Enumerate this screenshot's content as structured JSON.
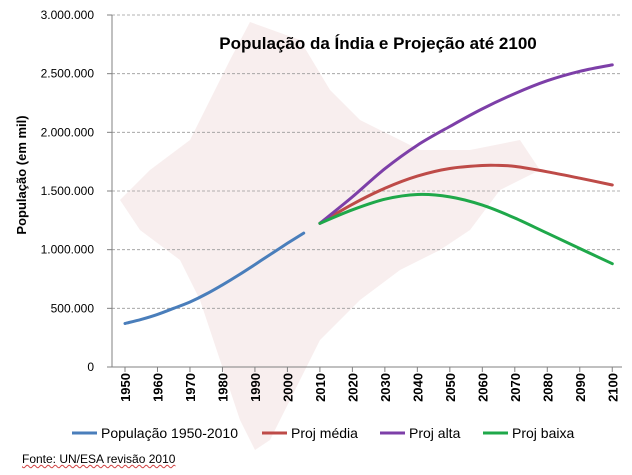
{
  "chart_data": {
    "type": "line",
    "title": "População da Índia e Projeção até 2100",
    "ylabel": "População (em mil)",
    "xlabel": "",
    "ylim": [
      0,
      3000000
    ],
    "xlim": [
      1946,
      2103
    ],
    "yticks": [
      0,
      500000,
      1000000,
      1500000,
      2000000,
      2500000,
      3000000
    ],
    "ytick_labels": [
      "0",
      "500.000",
      "1.000.000",
      "1.500.000",
      "2.000.000",
      "2.500.000",
      "3.000.000"
    ],
    "xticks": [
      1950,
      1960,
      1970,
      1980,
      1990,
      2000,
      2010,
      2020,
      2030,
      2040,
      2050,
      2060,
      2070,
      2080,
      2090,
      2100
    ],
    "xtick_labels": [
      "1950",
      "1960",
      "1970",
      "1980",
      "1990",
      "2000",
      "2010",
      "2020",
      "2030",
      "2040",
      "2050",
      "2060",
      "2070",
      "2080",
      "2090",
      "2100"
    ],
    "grid": true,
    "legend": "bottom",
    "series": [
      {
        "name": "População 1950-2010",
        "color": "#4a7ebb",
        "x": [
          1950,
          1955,
          1960,
          1965,
          1970,
          1975,
          1980,
          1985,
          1990,
          1995,
          2000,
          2005
        ],
        "values": [
          371000,
          406000,
          448000,
          500000,
          554000,
          622000,
          700000,
          784000,
          873000,
          964000,
          1054000,
          1141000
        ]
      },
      {
        "name": "Proj média",
        "color": "#be4b48",
        "x": [
          2010,
          2020,
          2030,
          2040,
          2050,
          2060,
          2065,
          2070,
          2080,
          2090,
          2100
        ],
        "values": [
          1225000,
          1387000,
          1523000,
          1627000,
          1692000,
          1717000,
          1718000,
          1710000,
          1664000,
          1609000,
          1551000
        ]
      },
      {
        "name": "Proj alta",
        "color": "#7d3fa8",
        "x": [
          2010,
          2020,
          2030,
          2040,
          2050,
          2060,
          2070,
          2080,
          2090,
          2100
        ],
        "values": [
          1225000,
          1450000,
          1690000,
          1890000,
          2050000,
          2200000,
          2330000,
          2440000,
          2520000,
          2575000
        ]
      },
      {
        "name": "Proj baixa",
        "color": "#1fa84a",
        "x": [
          2010,
          2020,
          2030,
          2040,
          2050,
          2060,
          2070,
          2080,
          2090,
          2100
        ],
        "values": [
          1225000,
          1340000,
          1430000,
          1470000,
          1450000,
          1380000,
          1270000,
          1140000,
          1010000,
          880000
        ]
      }
    ],
    "source": "Fonte: UN/ESA revisão 2010"
  }
}
